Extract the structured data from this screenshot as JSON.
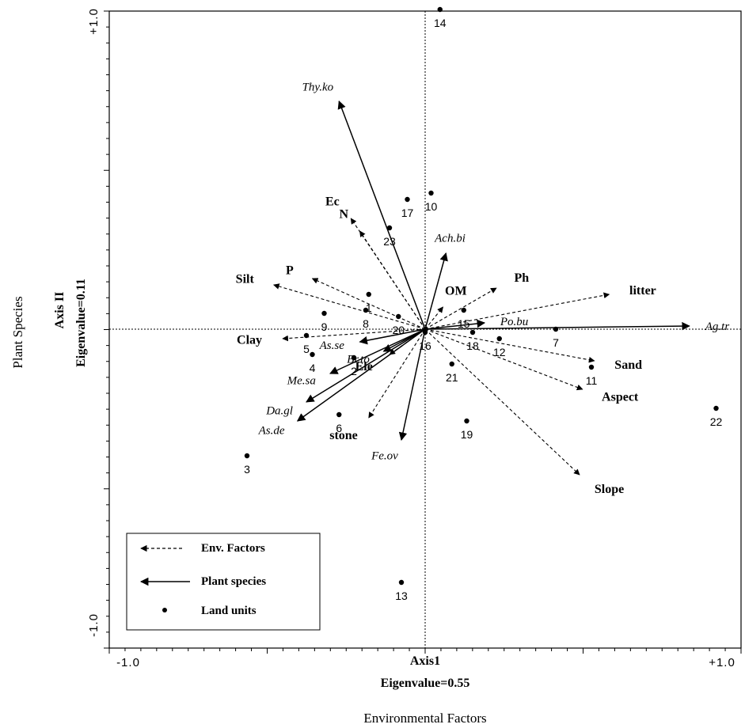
{
  "chart_data": {
    "type": "scatter",
    "subtype": "ordination biplot",
    "xlim": [
      -1.0,
      1.0
    ],
    "ylim": [
      -1.0,
      1.0
    ],
    "x_ticks": [
      "-1.0",
      "+1.0"
    ],
    "y_ticks": [
      "+1.0",
      "-1.0"
    ],
    "x_axis_title": "Axis1",
    "x_axis_subtitle": "Eigenvalue=0.55",
    "x_outer_label": "Environmental Factors",
    "y_axis_title": "Axis II",
    "y_axis_subtitle": "Eigenvalue=0.11",
    "y_outer_label": "Plant Species",
    "grid": false,
    "legend_position": "bottom-left",
    "legend": [
      {
        "label": "Env. Factors",
        "style": "dashed-arrow"
      },
      {
        "label": "Plant species",
        "style": "solid-arrow"
      },
      {
        "label": "Land units",
        "style": "dot"
      }
    ],
    "env_factors": [
      {
        "name": "Ec",
        "x": -0.25,
        "y": 0.35
      },
      {
        "name": "N",
        "x": -0.22,
        "y": 0.31
      },
      {
        "name": "P",
        "x": -0.38,
        "y": 0.16
      },
      {
        "name": "Silt",
        "x": -0.51,
        "y": 0.14
      },
      {
        "name": "Clay",
        "x": -0.48,
        "y": -0.03
      },
      {
        "name": "OM",
        "x": 0.06,
        "y": 0.07
      },
      {
        "name": "Ph",
        "x": 0.24,
        "y": 0.13
      },
      {
        "name": "litter",
        "x": 0.62,
        "y": 0.11
      },
      {
        "name": "Sand",
        "x": 0.57,
        "y": -0.1
      },
      {
        "name": "Aspect",
        "x": 0.53,
        "y": -0.19
      },
      {
        "name": "Slope",
        "x": 0.52,
        "y": -0.46
      },
      {
        "name": "stone",
        "x": -0.19,
        "y": -0.28
      },
      {
        "name": "Ele",
        "x": -0.12,
        "y": -0.08
      }
    ],
    "plant_species": [
      {
        "name": "Thy.ko",
        "x": -0.29,
        "y": 0.72
      },
      {
        "name": "Ach.bi",
        "x": 0.07,
        "y": 0.24
      },
      {
        "name": "Po.bu",
        "x": 0.2,
        "y": 0.02
      },
      {
        "name": "Ag.tr",
        "x": 0.89,
        "y": 0.01
      },
      {
        "name": "As.se",
        "x": -0.22,
        "y": -0.04
      },
      {
        "name": "Br.to",
        "x": -0.14,
        "y": -0.07
      },
      {
        "name": "Me.sa",
        "x": -0.32,
        "y": -0.14
      },
      {
        "name": "Da.gl",
        "x": -0.4,
        "y": -0.23
      },
      {
        "name": "As.de",
        "x": -0.43,
        "y": -0.29
      },
      {
        "name": "Fe.ov",
        "x": -0.08,
        "y": -0.35
      }
    ],
    "land_units": [
      {
        "id": "1",
        "x": -0.19,
        "y": 0.11
      },
      {
        "id": "2",
        "x": -0.24,
        "y": -0.09
      },
      {
        "id": "3",
        "x": -0.6,
        "y": -0.4
      },
      {
        "id": "4",
        "x": -0.38,
        "y": -0.08
      },
      {
        "id": "5",
        "x": -0.4,
        "y": -0.02
      },
      {
        "id": "6",
        "x": -0.29,
        "y": -0.27
      },
      {
        "id": "7",
        "x": 0.44,
        "y": 0.0
      },
      {
        "id": "8",
        "x": -0.2,
        "y": 0.06
      },
      {
        "id": "9",
        "x": -0.34,
        "y": 0.05
      },
      {
        "id": "10",
        "x": 0.02,
        "y": 0.43
      },
      {
        "id": "11",
        "x": 0.56,
        "y": -0.12
      },
      {
        "id": "12",
        "x": 0.25,
        "y": -0.03
      },
      {
        "id": "13",
        "x": -0.08,
        "y": -0.8
      },
      {
        "id": "14",
        "x": 0.05,
        "y": 1.01
      },
      {
        "id": "15",
        "x": 0.13,
        "y": 0.06
      },
      {
        "id": "16",
        "x": 0.0,
        "y": -0.01
      },
      {
        "id": "17",
        "x": -0.06,
        "y": 0.41
      },
      {
        "id": "18",
        "x": 0.16,
        "y": -0.01
      },
      {
        "id": "19",
        "x": 0.14,
        "y": -0.29
      },
      {
        "id": "20",
        "x": -0.09,
        "y": 0.04
      },
      {
        "id": "21",
        "x": 0.09,
        "y": -0.11
      },
      {
        "id": "22",
        "x": 0.98,
        "y": -0.25
      },
      {
        "id": "23",
        "x": -0.12,
        "y": 0.32
      }
    ]
  },
  "colors": {
    "ink": "#000000",
    "background": "#ffffff"
  }
}
